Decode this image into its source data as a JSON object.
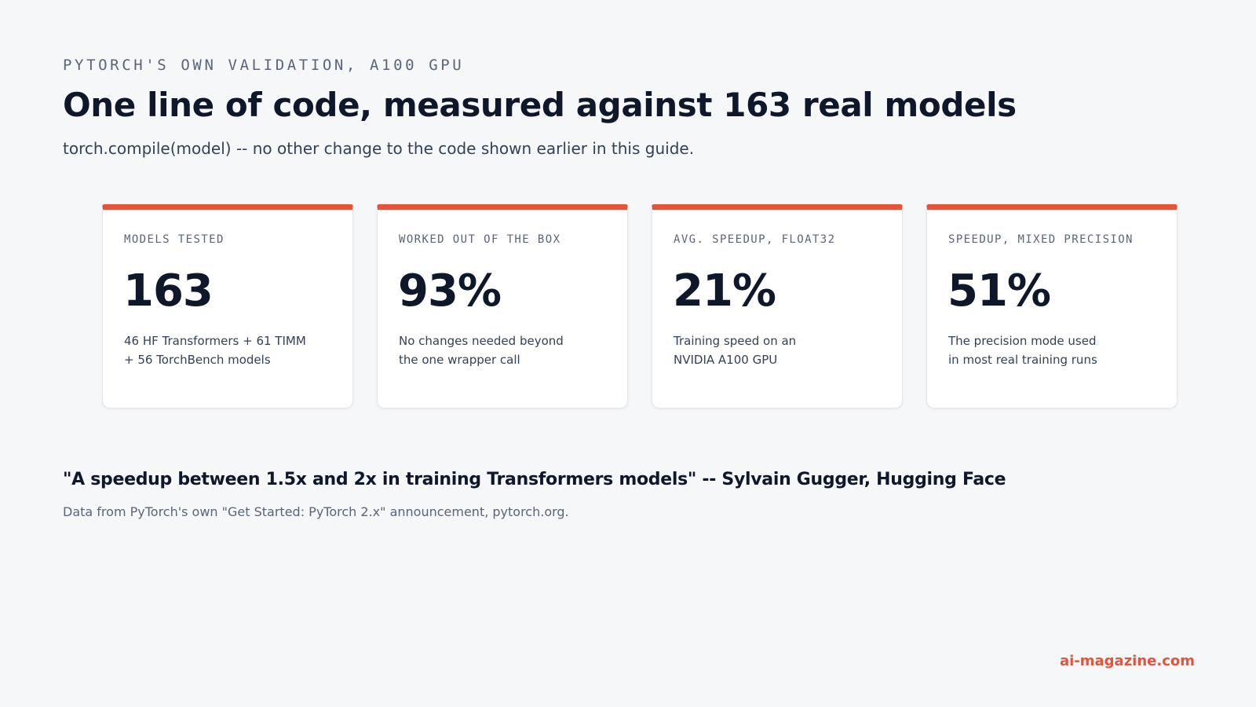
{
  "header": {
    "eyebrow": "PYTORCH'S OWN VALIDATION, A100 GPU",
    "title": "One line of code, measured against 163 real models",
    "subtitle": "torch.compile(model) -- no other change to the code shown earlier in this guide."
  },
  "stats": [
    {
      "label": "MODELS TESTED",
      "value": "163",
      "desc_line1": "46 HF Transformers + 61 TIMM",
      "desc_line2": "+ 56 TorchBench models"
    },
    {
      "label": "WORKED OUT OF THE BOX",
      "value": "93%",
      "desc_line1": "No changes needed beyond",
      "desc_line2": "the one wrapper call"
    },
    {
      "label": "AVG. SPEEDUP, FLOAT32",
      "value": "21%",
      "desc_line1": "Training speed on an",
      "desc_line2": "NVIDIA A100 GPU"
    },
    {
      "label": "SPEEDUP, MIXED PRECISION",
      "value": "51%",
      "desc_line1": "The precision mode used",
      "desc_line2": "in most real training runs"
    }
  ],
  "quote": {
    "text": "\"A speedup between 1.5x and 2x in training Transformers models\" -- Sylvain Gugger, Hugging Face",
    "source": "Data from PyTorch's own \"Get Started: PyTorch 2.x\" announcement, pytorch.org."
  },
  "footer": {
    "brand": "ai-magazine.com"
  },
  "colors": {
    "accent": "#e5533a",
    "background": "#f6f7f9",
    "text": "#0f172a",
    "muted": "#5b6577"
  }
}
